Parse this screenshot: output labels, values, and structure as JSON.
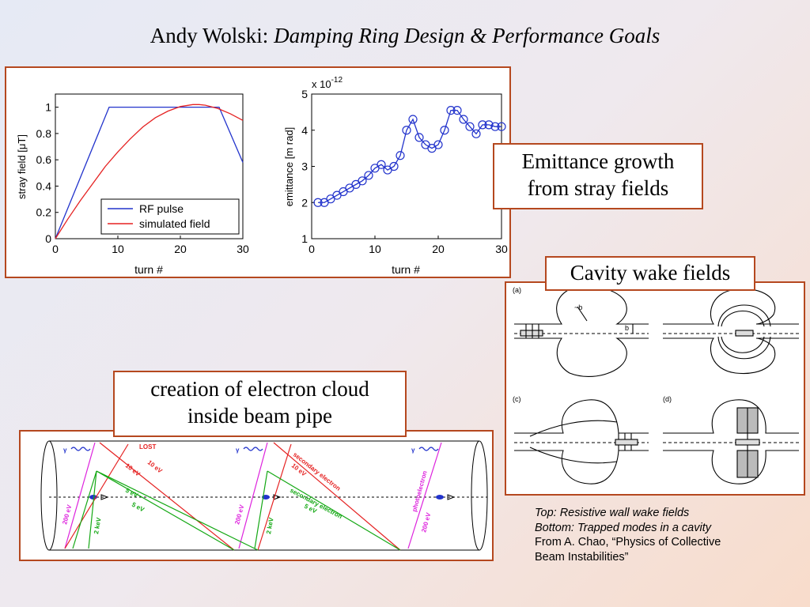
{
  "title": {
    "author": "Andy Wolski:",
    "topic": "Damping Ring Design & Performance Goals"
  },
  "labels": {
    "emittance_growth_line1": "Emittance growth",
    "emittance_growth_line2": "from stray fields",
    "cavity_wake": "Cavity wake fields",
    "cloud_line1": "creation of electron cloud",
    "cloud_line2": "inside beam pipe"
  },
  "caption": {
    "line1": "Top: Resistive wall wake fields",
    "line2": "Bottom: Trapped modes in a cavity",
    "line3": "From A. Chao, “Physics of Collective",
    "line4": "Beam Instabilities”"
  },
  "cavity_panels": {
    "a": "(a)",
    "c": "(c)",
    "d": "(d)",
    "b_label": "b",
    "tilde_b_label": "~b"
  },
  "cloud_diagram": {
    "gamma": "γ",
    "lost": "LOST",
    "e10": "10 eV",
    "e5": "5 eV",
    "e200": "200 eV",
    "e2k": "2 keV",
    "secondary": "secondary electron",
    "photo": "photoelectron"
  },
  "colors": {
    "frame": "#b5481f",
    "blue": "#2233cc",
    "red": "#e52222",
    "green": "#14a814",
    "magenta": "#dd22dd"
  },
  "chart_data": [
    {
      "type": "line",
      "xlabel": "turn #",
      "ylabel": "stray field [μT]",
      "xlim": [
        0,
        30
      ],
      "ylim": [
        0,
        1.1
      ],
      "xticks": [
        0,
        10,
        20,
        30
      ],
      "yticks": [
        0,
        0.2,
        0.4,
        0.6,
        0.8,
        1
      ],
      "legend_position": "bottom-right",
      "series": [
        {
          "name": "RF pulse",
          "color": "#2233cc",
          "x": [
            0,
            8.6,
            26.2,
            30
          ],
          "y": [
            0,
            1,
            1,
            0.58
          ]
        },
        {
          "name": "simulated field",
          "color": "#e52222",
          "x": [
            0,
            2,
            4,
            6,
            8,
            10,
            12,
            14,
            16,
            18,
            20,
            22,
            23,
            24,
            26,
            28,
            30
          ],
          "y": [
            0,
            0.15,
            0.29,
            0.42,
            0.55,
            0.66,
            0.76,
            0.85,
            0.92,
            0.97,
            1.005,
            1.02,
            1.02,
            1.015,
            0.99,
            0.95,
            0.9
          ]
        }
      ]
    },
    {
      "type": "line",
      "xlabel": "turn #",
      "ylabel": "emittance [m rad]",
      "multiplier": "x 10",
      "exponent": "-12",
      "xlim": [
        0,
        30
      ],
      "ylim": [
        1,
        5
      ],
      "xticks": [
        0,
        10,
        20,
        30
      ],
      "yticks": [
        1,
        2,
        3,
        4,
        5
      ],
      "series": [
        {
          "name": "",
          "color": "#2233cc",
          "marker": "circle",
          "x": [
            1,
            2,
            3,
            4,
            5,
            6,
            7,
            8,
            9,
            10,
            11,
            12,
            13,
            14,
            15,
            16,
            17,
            18,
            19,
            20,
            21,
            22,
            23,
            24,
            25,
            26,
            27,
            28,
            29,
            30
          ],
          "y": [
            2.0,
            2.0,
            2.1,
            2.2,
            2.3,
            2.4,
            2.5,
            2.6,
            2.75,
            2.95,
            3.05,
            2.9,
            3.0,
            3.3,
            4.0,
            4.3,
            3.8,
            3.6,
            3.5,
            3.6,
            4.0,
            4.55,
            4.55,
            4.3,
            4.1,
            3.9,
            4.15,
            4.15,
            4.1,
            4.1
          ]
        }
      ]
    }
  ]
}
